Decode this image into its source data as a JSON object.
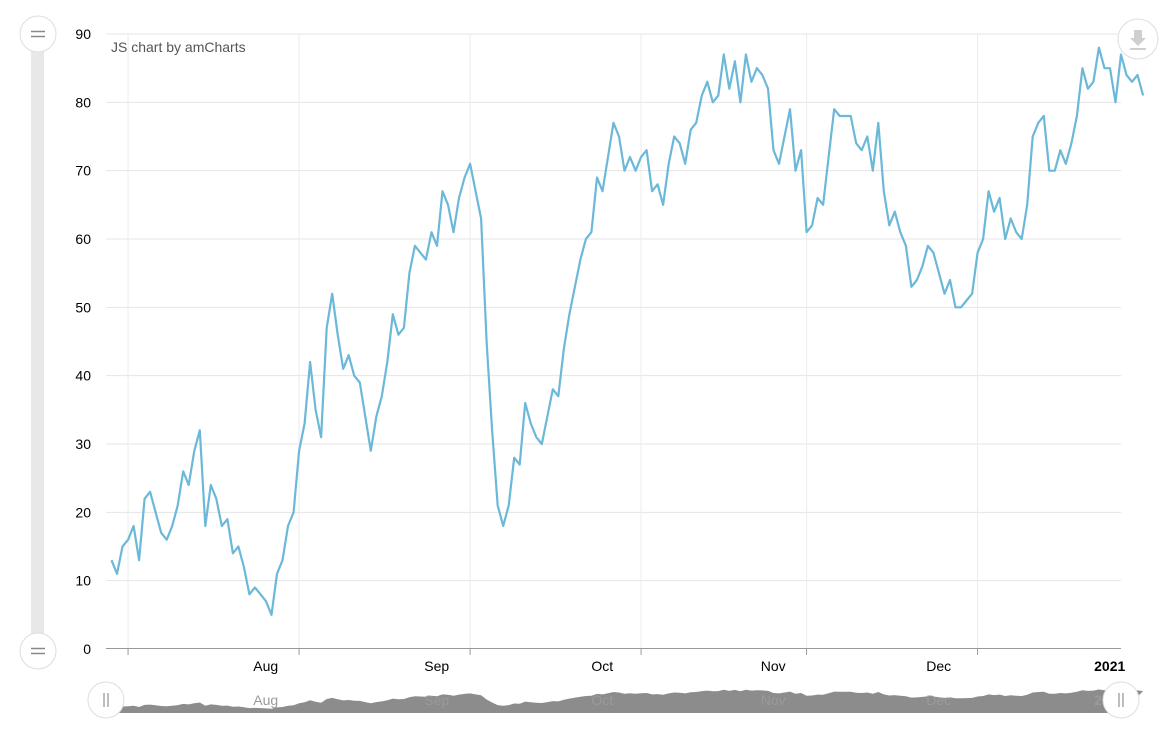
{
  "credit": "JS chart by amCharts",
  "colors": {
    "line": "#6bb8d9",
    "grid": "#e5e5e5",
    "axis": "#999999",
    "scrollbar_fill": "#8c8c8c",
    "scrollbar_track": "#e8e8e8"
  },
  "icons": {
    "zoom_handle": "grip-lines-icon",
    "download": "download-icon",
    "scroll_grip": "grip-vertical-icon"
  },
  "chart_data": {
    "type": "line",
    "title": "",
    "xlabel": "",
    "ylabel": "",
    "ylim": [
      0,
      90
    ],
    "y_ticks": [
      0,
      10,
      20,
      30,
      40,
      50,
      60,
      70,
      80,
      90
    ],
    "x_range": [
      "2020-07-19",
      "2021-01-19"
    ],
    "x_ticks": [
      {
        "label": "Aug",
        "date": "2020-08-01",
        "bold": false
      },
      {
        "label": "Sep",
        "date": "2020-09-01",
        "bold": false
      },
      {
        "label": "Oct",
        "date": "2020-10-01",
        "bold": false
      },
      {
        "label": "Nov",
        "date": "2020-11-01",
        "bold": false
      },
      {
        "label": "Dec",
        "date": "2020-12-01",
        "bold": false
      },
      {
        "label": "2021",
        "date": "2021-01-01",
        "bold": true
      }
    ],
    "grid": true,
    "legend": "none",
    "series": [
      {
        "start_date": "2020-07-20",
        "step_days": 1,
        "values": [
          13,
          11,
          15,
          16,
          18,
          13,
          22,
          23,
          20,
          17,
          16,
          18,
          21,
          26,
          24,
          29,
          32,
          18,
          24,
          22,
          18,
          19,
          14,
          15,
          12,
          8,
          9,
          8,
          7,
          5,
          11,
          13,
          18,
          20,
          29,
          33,
          42,
          35,
          31,
          47,
          52,
          46,
          41,
          43,
          40,
          39,
          34,
          29,
          34,
          37,
          42,
          49,
          46,
          47,
          55,
          59,
          58,
          57,
          61,
          59,
          67,
          65,
          61,
          66,
          69,
          71,
          67,
          63,
          45,
          32,
          21,
          18,
          21,
          28,
          27,
          36,
          33,
          31,
          30,
          34,
          38,
          37,
          44,
          49,
          53,
          57,
          60,
          61,
          69,
          67,
          72,
          77,
          75,
          70,
          72,
          70,
          72,
          73,
          67,
          68,
          65,
          71,
          75,
          74,
          71,
          76,
          77,
          81,
          83,
          80,
          81,
          87,
          82,
          86,
          80,
          87,
          83,
          85,
          84,
          82,
          73,
          71,
          75,
          79,
          70,
          73,
          61,
          62,
          66,
          65,
          72,
          79,
          78,
          78,
          78,
          74,
          73,
          75,
          70,
          77,
          67,
          62,
          64,
          61,
          59,
          53,
          54,
          56,
          59,
          58,
          55,
          52,
          54,
          50,
          50,
          51,
          52,
          58,
          60,
          67,
          64,
          66,
          60,
          63,
          61,
          60,
          65,
          75,
          77,
          78,
          70,
          70,
          73,
          71,
          74,
          78,
          85,
          82,
          83,
          88,
          85,
          85,
          80,
          87,
          84,
          83,
          84,
          81
        ]
      }
    ]
  },
  "scrollbar": {
    "labels": [
      "Aug",
      "Sep",
      "Oct",
      "Nov",
      "Dec",
      "2021"
    ]
  }
}
